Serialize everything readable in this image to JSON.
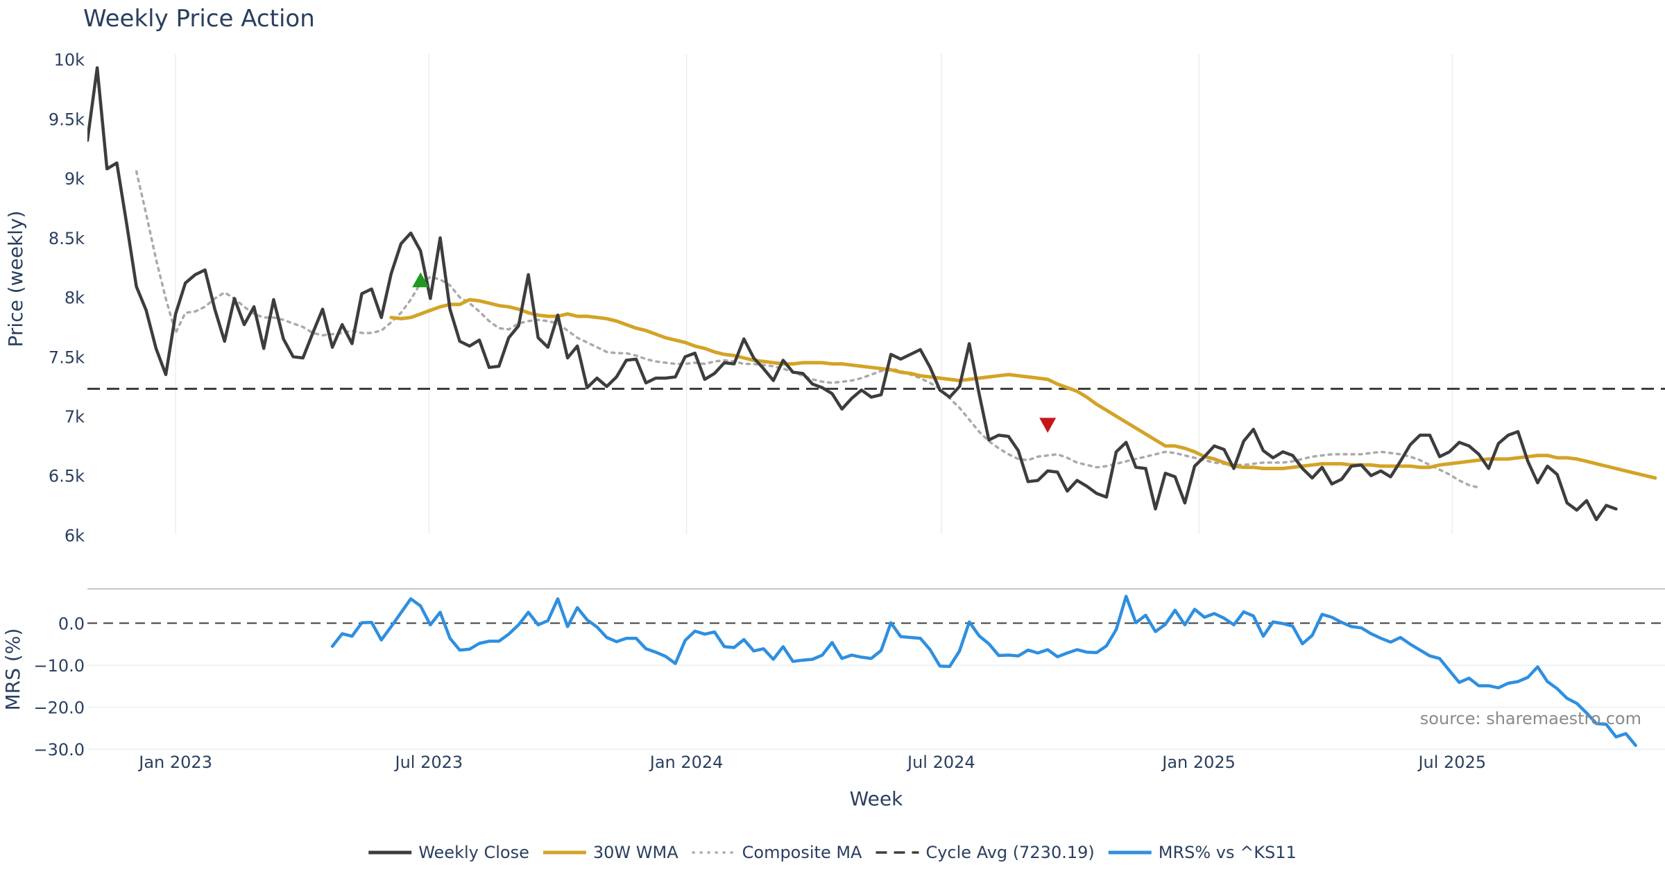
{
  "chart_data": {
    "type": "line",
    "title": "Weekly Price Action",
    "xlabel": "Week",
    "source_note": "source: sharemaestro.com",
    "x_ticks": [
      "Jan 2023",
      "Jul 2023",
      "Jan 2024",
      "Jul 2024",
      "Jan 2025",
      "Jul 2025"
    ],
    "x_tick_dates": [
      "2023-01-01",
      "2023-07-01",
      "2024-01-01",
      "2024-07-01",
      "2025-01-01",
      "2025-07-01"
    ],
    "x_range": [
      "2022-10-30",
      "2025-11-30"
    ],
    "price_panel": {
      "ylabel": "Price (weekly)",
      "ylim": [
        5950,
        10150
      ],
      "y_ticks": [
        6000,
        6500,
        7000,
        7500,
        8000,
        8500,
        9000,
        9500,
        10000
      ],
      "y_tick_labels": [
        "6k",
        "6.5k",
        "7k",
        "7.5k",
        "8k",
        "8.5k",
        "9k",
        "9.5k",
        "10k"
      ],
      "cycle_avg": 7230.19,
      "series": [
        {
          "name": "Weekly Close",
          "color": "#3d3d3d",
          "start": "2022-10-30",
          "step_days": 7,
          "values": [
            9320,
            9930,
            9080,
            9130,
            8620,
            8090,
            7890,
            7570,
            7350,
            7860,
            8120,
            8190,
            8230,
            7900,
            7630,
            7990,
            7770,
            7920,
            7570,
            7980,
            7650,
            7500,
            7490,
            7700,
            7900,
            7580,
            7770,
            7610,
            8030,
            8070,
            7830,
            8200,
            8450,
            8540,
            8390,
            7990,
            8500,
            7900,
            7630,
            7590,
            7640,
            7410,
            7420,
            7660,
            7760,
            8190,
            7660,
            7580,
            7850,
            7490,
            7590,
            7240,
            7320,
            7250,
            7330,
            7470,
            7480,
            7280,
            7320,
            7320,
            7330,
            7500,
            7530,
            7310,
            7360,
            7450,
            7440,
            7650,
            7490,
            7400,
            7300,
            7470,
            7370,
            7360,
            7270,
            7240,
            7190,
            7060,
            7150,
            7220,
            7160,
            7180,
            7520,
            7480,
            7520,
            7560,
            7410,
            7220,
            7160,
            7250,
            7610,
            7190,
            6800,
            6840,
            6830,
            6710,
            6450,
            6460,
            6540,
            6530,
            6370,
            6460,
            6410,
            6350,
            6320,
            6700,
            6780,
            6570,
            6560,
            6220,
            6520,
            6490,
            6270,
            6580,
            6660,
            6750,
            6720,
            6560,
            6790,
            6890,
            6710,
            6650,
            6700,
            6670,
            6560,
            6480,
            6570,
            6430,
            6470,
            6580,
            6590,
            6500,
            6540,
            6490,
            6620,
            6760,
            6840,
            6840,
            6660,
            6700,
            6780,
            6750,
            6680,
            6560,
            6770,
            6840,
            6870,
            6620,
            6440,
            6580,
            6510,
            6270,
            6210,
            6290,
            6130,
            6250,
            6220
          ]
        },
        {
          "name": "30W WMA",
          "color": "#d4a326",
          "start": "2023-06-04",
          "step_days": 7,
          "values": [
            7830,
            7820,
            7830,
            7860,
            7890,
            7920,
            7940,
            7940,
            7980,
            7970,
            7950,
            7930,
            7920,
            7900,
            7870,
            7850,
            7840,
            7840,
            7860,
            7840,
            7840,
            7830,
            7820,
            7800,
            7770,
            7740,
            7720,
            7690,
            7660,
            7640,
            7620,
            7590,
            7570,
            7540,
            7520,
            7510,
            7490,
            7470,
            7460,
            7450,
            7440,
            7440,
            7450,
            7450,
            7450,
            7440,
            7440,
            7430,
            7420,
            7410,
            7400,
            7390,
            7370,
            7360,
            7340,
            7330,
            7320,
            7310,
            7300,
            7310,
            7320,
            7330,
            7340,
            7350,
            7340,
            7330,
            7320,
            7310,
            7270,
            7240,
            7210,
            7160,
            7100,
            7050,
            7000,
            6950,
            6900,
            6850,
            6800,
            6750,
            6750,
            6730,
            6700,
            6660,
            6640,
            6610,
            6580,
            6570,
            6570,
            6560,
            6560,
            6560,
            6570,
            6580,
            6590,
            6600,
            6600,
            6600,
            6590,
            6590,
            6590,
            6580,
            6580,
            6580,
            6580,
            6570,
            6570,
            6590,
            6600,
            6610,
            6620,
            6630,
            6640,
            6640,
            6640,
            6650,
            6660,
            6670,
            6670,
            6650,
            6650,
            6640,
            6620,
            6600,
            6580,
            6560,
            6540,
            6520,
            6500,
            6480
          ]
        },
        {
          "name": "Composite MA",
          "color": "#aaaaaa",
          "start": "2022-12-04",
          "step_days": 7,
          "values": [
            9060,
            8700,
            8320,
            7990,
            7700,
            7870,
            7880,
            7920,
            7990,
            8040,
            7990,
            7920,
            7860,
            7830,
            7830,
            7810,
            7780,
            7750,
            7700,
            7680,
            7690,
            7700,
            7720,
            7700,
            7700,
            7720,
            7790,
            7870,
            7980,
            8120,
            8170,
            8150,
            8100,
            8000,
            7950,
            7880,
            7800,
            7740,
            7730,
            7780,
            7800,
            7810,
            7800,
            7780,
            7720,
            7660,
            7620,
            7580,
            7540,
            7530,
            7530,
            7510,
            7480,
            7460,
            7450,
            7440,
            7440,
            7450,
            7440,
            7460,
            7470,
            7460,
            7440,
            7440,
            7430,
            7420,
            7400,
            7370,
            7340,
            7310,
            7290,
            7280,
            7290,
            7300,
            7320,
            7350,
            7380,
            7400,
            7380,
            7350,
            7320,
            7280,
            7230,
            7150,
            7070,
            6970,
            6870,
            6790,
            6730,
            6680,
            6640,
            6630,
            6660,
            6670,
            6680,
            6650,
            6610,
            6590,
            6570,
            6580,
            6600,
            6620,
            6640,
            6660,
            6680,
            6700,
            6690,
            6670,
            6650,
            6630,
            6610,
            6600,
            6590,
            6590,
            6600,
            6610,
            6610,
            6610,
            6620,
            6640,
            6660,
            6670,
            6680,
            6680,
            6680,
            6680,
            6690,
            6700,
            6690,
            6680,
            6660,
            6630,
            6590,
            6550,
            6510,
            6460,
            6420,
            6400
          ]
        }
      ],
      "markers": [
        {
          "type": "buy",
          "shape": "triangle-up",
          "color": "#1e9a1e",
          "date": "2023-06-25",
          "value": 8140
        },
        {
          "type": "sell",
          "shape": "triangle-down",
          "color": "#c41818",
          "date": "2024-09-15",
          "value": 6930
        }
      ]
    },
    "mrs_panel": {
      "ylabel": "MRS (%)",
      "ylim": [
        -30,
        8
      ],
      "y_ticks": [
        0,
        -10,
        -20,
        -30
      ],
      "y_tick_labels": [
        "0.0",
        "−10.0",
        "−20.0",
        "−30.0"
      ],
      "zero_line": 0,
      "series": [
        {
          "name": "MRS% vs ^KS11",
          "color": "#2e8fe0",
          "start": "2023-04-23",
          "step_days": 7,
          "values": [
            -5.5,
            -2.5,
            -3.1,
            0.1,
            0.2,
            -4.0,
            -0.8,
            2.5,
            5.8,
            4.1,
            -0.4,
            2.6,
            -3.6,
            -6.4,
            -6.2,
            -4.8,
            -4.3,
            -4.3,
            -2.6,
            -0.4,
            2.6,
            -0.4,
            0.6,
            5.8,
            -0.8,
            3.7,
            0.8,
            -0.9,
            -3.4,
            -4.4,
            -3.6,
            -3.6,
            -6.1,
            -6.9,
            -7.9,
            -9.6,
            -4.1,
            -1.9,
            -2.6,
            -2.1,
            -5.6,
            -5.8,
            -3.9,
            -6.6,
            -6.1,
            -8.6,
            -5.6,
            -9.1,
            -8.8,
            -8.6,
            -7.6,
            -4.6,
            -8.4,
            -7.6,
            -8.1,
            -8.4,
            -6.5,
            0.1,
            -3.2,
            -3.4,
            -3.6,
            -6.3,
            -10.2,
            -10.3,
            -6.6,
            0.3,
            -3.0,
            -4.9,
            -7.7,
            -7.6,
            -7.8,
            -6.4,
            -7.1,
            -6.3,
            -8.0,
            -7.1,
            -6.3,
            -6.9,
            -7.0,
            -5.4,
            -1.5,
            6.4,
            0.1,
            1.9,
            -2.0,
            -0.3,
            3.1,
            -0.4,
            3.3,
            1.4,
            2.3,
            1.2,
            -0.4,
            2.7,
            1.7,
            -3.1,
            0.3,
            -0.1,
            -0.7,
            -4.9,
            -2.9,
            2.1,
            1.4,
            0.2,
            -0.8,
            -1.1,
            -2.5,
            -3.6,
            -4.5,
            -3.4,
            -5.0,
            -6.4,
            -7.8,
            -8.4,
            -11.3,
            -14.1,
            -13.1,
            -14.9,
            -14.9,
            -15.4,
            -14.3,
            -13.9,
            -12.9,
            -10.4,
            -13.9,
            -15.6,
            -17.9,
            -19.1,
            -21.4,
            -23.9,
            -24.1,
            -27.1,
            -26.3,
            -29.1
          ]
        }
      ]
    },
    "legend": {
      "position": "bottom-center",
      "entries": [
        {
          "label": "Weekly Close",
          "color": "#3d3d3d",
          "dash": "solid"
        },
        {
          "label": "30W WMA",
          "color": "#d4a326",
          "dash": "solid"
        },
        {
          "label": "Composite MA",
          "color": "#aaaaaa",
          "dash": "dot"
        },
        {
          "label": "Cycle Avg (7230.19)",
          "color": "#3d3d3d",
          "dash": "dash"
        },
        {
          "label": "MRS% vs ^KS11",
          "color": "#2e8fe0",
          "dash": "solid"
        }
      ]
    }
  }
}
